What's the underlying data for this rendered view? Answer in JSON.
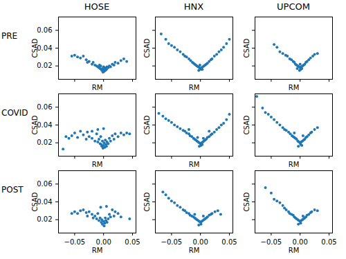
{
  "chart_data": [
    {
      "type": "scatter",
      "title": "HOSE",
      "annotations": [
        "PRE"
      ],
      "x_label": "RM",
      "y_label": "CSAD",
      "color": "#1f77b4",
      "tick_labels": "y",
      "xlim": [
        -0.078,
        0.056
      ],
      "ylim": [
        0.005,
        0.075
      ],
      "xticks": [
        {
          "value": -0.05,
          "label": "−0.05"
        },
        {
          "value": 0,
          "label": "0.00"
        },
        0.05
      ],
      "yticks": [
        0.02,
        0.04,
        0.06
      ],
      "x": [
        -0.055,
        -0.05,
        -0.045,
        -0.04,
        -0.035,
        -0.03,
        -0.028,
        -0.025,
        -0.02,
        -0.018,
        -0.015,
        -0.012,
        -0.01,
        -0.008,
        -0.006,
        -0.005,
        -0.004,
        -0.003,
        -0.002,
        0,
        0.001,
        0.002,
        0.003,
        0.004,
        0.005,
        0.006,
        0.008,
        0.01,
        0.012,
        0.015,
        0.018,
        0.02,
        0.025,
        0.03,
        0.035,
        0.04,
        -0.001,
        0,
        -0.007
      ],
      "values": [
        0.031,
        0.032,
        0.03,
        0.029,
        0.031,
        0.027,
        0.024,
        0.025,
        0.022,
        0.024,
        0.021,
        0.02,
        0.019,
        0.018,
        0.017,
        0.02,
        0.016,
        0.015,
        0.017,
        0.016,
        0.014,
        0.018,
        0.015,
        0.017,
        0.016,
        0.019,
        0.018,
        0.02,
        0.019,
        0.022,
        0.021,
        0.024,
        0.023,
        0.026,
        0.028,
        0.025,
        0.013,
        0.019,
        0.021
      ]
    },
    {
      "type": "scatter",
      "title": "HNX",
      "x_label": "RM",
      "y_label": "CSAD",
      "color": "#1f77b4",
      "tick_labels": false,
      "xlim": [
        -0.078,
        0.056
      ],
      "ylim": [
        0.005,
        0.075
      ],
      "xticks": [
        {
          "value": -0.05,
          "label": "−0.05"
        },
        {
          "value": 0,
          "label": "0.00"
        },
        0.05
      ],
      "yticks": [
        0.02,
        0.04,
        0.06
      ],
      "x": [
        -0.068,
        -0.06,
        -0.055,
        -0.05,
        -0.045,
        -0.04,
        -0.035,
        -0.03,
        -0.027,
        -0.024,
        -0.02,
        -0.017,
        -0.014,
        -0.012,
        -0.01,
        -0.008,
        -0.006,
        -0.004,
        -0.002,
        0,
        0.001,
        0.002,
        0.004,
        0.006,
        0.008,
        0.01,
        0.012,
        0.015,
        0.018,
        0.02,
        0.024,
        0.028,
        0.032,
        0.036,
        0.04,
        0.045,
        0.05,
        -0.003,
        0.003,
        -0.001
      ],
      "values": [
        0.056,
        0.05,
        0.045,
        0.043,
        0.041,
        0.038,
        0.036,
        0.033,
        0.031,
        0.03,
        0.028,
        0.026,
        0.024,
        0.023,
        0.022,
        0.021,
        0.02,
        0.019,
        0.018,
        0.017,
        0.016,
        0.018,
        0.019,
        0.02,
        0.021,
        0.022,
        0.023,
        0.025,
        0.027,
        0.028,
        0.031,
        0.033,
        0.036,
        0.038,
        0.041,
        0.045,
        0.05,
        0.015,
        0.016,
        0.021
      ]
    },
    {
      "type": "scatter",
      "title": "UPCOM",
      "x_label": "RM",
      "y_label": "CSAD",
      "color": "#1f77b4",
      "tick_labels": false,
      "xlim": [
        -0.078,
        0.056
      ],
      "ylim": [
        0.005,
        0.075
      ],
      "xticks": [
        {
          "value": -0.05,
          "label": "−0.05"
        },
        {
          "value": 0,
          "label": "0.00"
        },
        0.05
      ],
      "yticks": [
        0.02,
        0.04,
        0.06
      ],
      "x": [
        -0.045,
        -0.04,
        -0.035,
        -0.03,
        -0.025,
        -0.022,
        -0.018,
        -0.015,
        -0.012,
        -0.01,
        -0.008,
        -0.006,
        -0.004,
        -0.002,
        0,
        0.001,
        0.002,
        0.003,
        0.004,
        0.006,
        0.008,
        0.01,
        0.012,
        0.015,
        0.018,
        0.022,
        0.025,
        0.03,
        -0.001,
        0,
        -0.005
      ],
      "values": [
        0.044,
        0.041,
        0.036,
        0.034,
        0.032,
        0.031,
        0.028,
        0.027,
        0.025,
        0.024,
        0.022,
        0.021,
        0.02,
        0.019,
        0.018,
        0.016,
        0.019,
        0.017,
        0.02,
        0.021,
        0.022,
        0.024,
        0.025,
        0.027,
        0.029,
        0.031,
        0.033,
        0.034,
        0.015,
        0.022,
        0.017
      ]
    },
    {
      "type": "scatter",
      "annotations": [
        "COVID"
      ],
      "x_label": "RM",
      "y_label": "CSAD",
      "color": "#1f77b4",
      "tick_labels": "y",
      "xlim": [
        -0.078,
        0.056
      ],
      "ylim": [
        0.005,
        0.075
      ],
      "xticks": [
        {
          "value": -0.05,
          "label": "−0.05"
        },
        {
          "value": 0,
          "label": "0.00"
        },
        0.05
      ],
      "yticks": [
        0.02,
        0.04,
        0.06
      ],
      "x": [
        -0.07,
        -0.065,
        -0.06,
        -0.055,
        -0.05,
        -0.045,
        -0.04,
        -0.035,
        -0.03,
        -0.028,
        -0.025,
        -0.02,
        -0.02,
        -0.015,
        -0.012,
        -0.01,
        -0.008,
        -0.006,
        -0.005,
        -0.004,
        -0.003,
        -0.002,
        -0.001,
        0,
        0.001,
        0.002,
        0.003,
        0.004,
        0.005,
        0.006,
        0.008,
        0.01,
        0.012,
        0.015,
        0.018,
        0.02,
        0.025,
        0.03,
        0.035,
        0.04,
        0.045,
        0,
        -0.01
      ],
      "values": [
        0.013,
        0.027,
        0.025,
        0.028,
        0.031,
        0.026,
        0.033,
        0.029,
        0.024,
        0.032,
        0.027,
        0.025,
        0.033,
        0.022,
        0.03,
        0.021,
        0.024,
        0.019,
        0.027,
        0.018,
        0.016,
        0.022,
        0.014,
        0.017,
        0.02,
        0.015,
        0.023,
        0.018,
        0.016,
        0.021,
        0.019,
        0.025,
        0.022,
        0.028,
        0.024,
        0.03,
        0.027,
        0.031,
        0.029,
        0.031,
        0.03,
        0.036,
        0.035
      ]
    },
    {
      "type": "scatter",
      "x_label": "RM",
      "y_label": "CSAD",
      "color": "#1f77b4",
      "tick_labels": false,
      "xlim": [
        -0.078,
        0.056
      ],
      "ylim": [
        0.005,
        0.075
      ],
      "xticks": [
        {
          "value": -0.05,
          "label": "−0.05"
        },
        {
          "value": 0,
          "label": "0.00"
        },
        0.05
      ],
      "yticks": [
        0.02,
        0.04,
        0.06
      ],
      "x": [
        -0.072,
        -0.065,
        -0.06,
        -0.055,
        -0.05,
        -0.045,
        -0.04,
        -0.035,
        -0.03,
        -0.027,
        -0.024,
        -0.02,
        -0.018,
        -0.015,
        -0.012,
        -0.01,
        -0.008,
        -0.006,
        -0.004,
        -0.002,
        0,
        0.001,
        0.002,
        0.004,
        0.006,
        0.008,
        0.01,
        0.012,
        0.015,
        0.018,
        0.02,
        0.024,
        0.028,
        0.032,
        0.036,
        0.04,
        0.045,
        0.05,
        -0.005,
        0.005,
        -0.002,
        0.003,
        -0.02,
        0.015
      ],
      "values": [
        0.053,
        0.05,
        0.047,
        0.045,
        0.043,
        0.04,
        0.038,
        0.036,
        0.034,
        0.033,
        0.031,
        0.03,
        0.028,
        0.027,
        0.025,
        0.024,
        0.023,
        0.022,
        0.021,
        0.02,
        0.019,
        0.017,
        0.02,
        0.021,
        0.022,
        0.023,
        0.024,
        0.026,
        0.027,
        0.029,
        0.03,
        0.032,
        0.035,
        0.037,
        0.04,
        0.042,
        0.046,
        0.052,
        0.026,
        0.025,
        0.016,
        0.018,
        0.035,
        0.033
      ]
    },
    {
      "type": "scatter",
      "x_label": "RM",
      "y_label": "CSAD",
      "color": "#1f77b4",
      "tick_labels": false,
      "xlim": [
        -0.078,
        0.056
      ],
      "ylim": [
        0.005,
        0.075
      ],
      "xticks": [
        {
          "value": -0.05,
          "label": "−0.05"
        },
        {
          "value": 0,
          "label": "0.00"
        },
        0.05
      ],
      "yticks": [
        0.02,
        0.04,
        0.06
      ],
      "x": [
        -0.075,
        -0.065,
        -0.06,
        -0.055,
        -0.05,
        -0.045,
        -0.04,
        -0.035,
        -0.03,
        -0.027,
        -0.024,
        -0.02,
        -0.017,
        -0.014,
        -0.012,
        -0.01,
        -0.008,
        -0.006,
        -0.004,
        -0.002,
        0,
        0.001,
        0.002,
        0.004,
        0.006,
        0.008,
        0.01,
        0.012,
        0.015,
        0.018,
        0.02,
        0.025,
        0.03,
        -0.003,
        0.003,
        -0.01,
        0.005
      ],
      "values": [
        0.072,
        0.059,
        0.054,
        0.052,
        0.049,
        0.046,
        0.043,
        0.04,
        0.037,
        0.035,
        0.034,
        0.032,
        0.03,
        0.028,
        0.027,
        0.026,
        0.025,
        0.024,
        0.022,
        0.021,
        0.02,
        0.018,
        0.021,
        0.022,
        0.023,
        0.024,
        0.026,
        0.027,
        0.029,
        0.031,
        0.032,
        0.035,
        0.037,
        0.016,
        0.017,
        0.031,
        0.028
      ]
    },
    {
      "type": "scatter",
      "annotations": [
        "POST"
      ],
      "x_label": "RM",
      "y_label": "CSAD",
      "color": "#1f77b4",
      "xlim": [
        -0.078,
        0.056
      ],
      "ylim": [
        0.005,
        0.075
      ],
      "xticks": [
        {
          "value": -0.05,
          "label": "−0.05"
        },
        {
          "value": 0,
          "label": "0.00"
        },
        0.05
      ],
      "yticks": [
        0.02,
        0.04,
        0.06
      ],
      "x": [
        -0.055,
        -0.05,
        -0.045,
        -0.04,
        -0.035,
        -0.03,
        -0.028,
        -0.025,
        -0.02,
        -0.018,
        -0.015,
        -0.012,
        -0.01,
        -0.008,
        -0.006,
        -0.005,
        -0.004,
        -0.003,
        -0.002,
        0,
        0.001,
        0.002,
        0.003,
        0.004,
        0.005,
        0.006,
        0.008,
        0.01,
        0.012,
        0.015,
        0.018,
        0.02,
        0.025,
        0.03,
        0.045
      ],
      "values": [
        0.027,
        0.029,
        0.027,
        0.03,
        0.031,
        0.028,
        0.024,
        0.029,
        0.026,
        0.022,
        0.024,
        0.021,
        0.027,
        0.019,
        0.022,
        0.034,
        0.017,
        0.02,
        0.015,
        0.018,
        0.013,
        0.016,
        0.022,
        0.019,
        0.035,
        0.017,
        0.021,
        0.026,
        0.023,
        0.031,
        0.024,
        0.029,
        0.027,
        0.023,
        0.021
      ]
    },
    {
      "type": "scatter",
      "x_label": "RM",
      "y_label": "CSAD",
      "color": "#1f77b4",
      "tick_labels": "x",
      "xlim": [
        -0.078,
        0.056
      ],
      "ylim": [
        0.005,
        0.075
      ],
      "xticks": [
        {
          "value": -0.05,
          "label": "−0.05"
        },
        {
          "value": 0,
          "label": "0.00"
        },
        0.05
      ],
      "yticks": [
        0.02,
        0.04,
        0.06
      ],
      "x": [
        -0.065,
        -0.06,
        -0.055,
        -0.05,
        -0.045,
        -0.04,
        -0.035,
        -0.03,
        -0.027,
        -0.024,
        -0.02,
        -0.018,
        -0.015,
        -0.012,
        -0.01,
        -0.008,
        -0.006,
        -0.004,
        -0.002,
        0,
        0.001,
        0.002,
        0.004,
        0.006,
        0.008,
        0.01,
        0.012,
        0.015,
        0.018,
        0.02,
        0.025,
        0.03,
        0.035,
        -0.003,
        0.005,
        -0.01
      ],
      "values": [
        0.051,
        0.048,
        0.044,
        0.041,
        0.039,
        0.036,
        0.034,
        0.031,
        0.03,
        0.028,
        0.027,
        0.025,
        0.024,
        0.023,
        0.022,
        0.021,
        0.02,
        0.019,
        0.018,
        0.017,
        0.015,
        0.018,
        0.019,
        0.02,
        0.021,
        0.022,
        0.023,
        0.025,
        0.026,
        0.027,
        0.029,
        0.03,
        0.026,
        0.014,
        0.024,
        0.026
      ]
    },
    {
      "type": "scatter",
      "x_label": "RM",
      "y_label": "CSAD",
      "color": "#1f77b4",
      "tick_labels": "x",
      "xlim": [
        -0.078,
        0.056
      ],
      "ylim": [
        0.005,
        0.075
      ],
      "xticks": [
        {
          "value": -0.05,
          "label": "−0.05"
        },
        {
          "value": 0,
          "label": "0.00"
        },
        0.05
      ],
      "yticks": [
        0.02,
        0.04,
        0.06
      ],
      "x": [
        -0.06,
        -0.05,
        -0.045,
        -0.04,
        -0.035,
        -0.03,
        -0.027,
        -0.024,
        -0.02,
        -0.018,
        -0.015,
        -0.012,
        -0.01,
        -0.008,
        -0.006,
        -0.004,
        -0.002,
        0,
        0.001,
        0.002,
        0.004,
        0.006,
        0.008,
        0.01,
        0.012,
        0.015,
        0.018,
        0.02,
        0.025,
        0.03,
        -0.003,
        0.005
      ],
      "values": [
        0.056,
        0.05,
        0.043,
        0.041,
        0.039,
        0.036,
        0.033,
        0.031,
        0.029,
        0.027,
        0.026,
        0.025,
        0.023,
        0.022,
        0.021,
        0.02,
        0.019,
        0.018,
        0.016,
        0.019,
        0.02,
        0.021,
        0.022,
        0.023,
        0.025,
        0.026,
        0.028,
        0.029,
        0.031,
        0.03,
        0.015,
        0.024
      ]
    }
  ]
}
